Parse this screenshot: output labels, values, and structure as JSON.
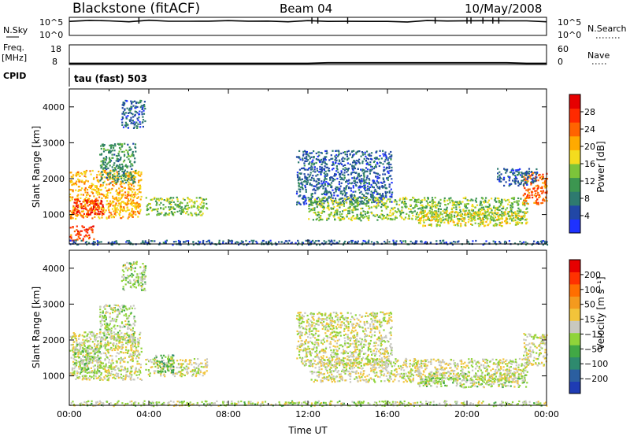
{
  "header": {
    "title": "Blackstone (fitACF)",
    "beam": "Beam 04",
    "date": "10/May/2008"
  },
  "strips": {
    "nsky_label": "N.Sky",
    "nsky_ticks": [
      "10^5",
      "10^0"
    ],
    "nsearch_label": "N.Search",
    "nsearch_ticks": [
      "10^5",
      "10^0"
    ],
    "freq_label": "Freq.",
    "freq_unit": "[MHz]",
    "freq_ticks": [
      "18",
      "8"
    ],
    "nave_label": "Nave",
    "nave_ticks": [
      "60",
      "0"
    ],
    "cpid_label": "CPID",
    "cpid_value": "tau (fast) 503"
  },
  "colors": {
    "power": [
      "#1e32ff",
      "#2147a6",
      "#2e7a6f",
      "#3c9650",
      "#7cc43a",
      "#f4dc1e",
      "#ffaa00",
      "#ff6400",
      "#ff2a00",
      "#e60000"
    ],
    "velocity": [
      "#1e3cb4",
      "#2b5fa0",
      "#2e8a6e",
      "#41a845",
      "#8fd43a",
      "#c8c8c0",
      "#f2c43a",
      "#f49a1e",
      "#ff6e00",
      "#ff3200",
      "#e60000"
    ]
  },
  "chart_data": [
    {
      "type": "heatmap",
      "name": "power",
      "xlabel": "",
      "ylabel": "Slant Range [km]",
      "xlim": [
        0,
        24
      ],
      "ylim": [
        180,
        4500
      ],
      "yticks": [
        "1000",
        "2000",
        "3000",
        "4000"
      ],
      "colorbar_label": "Power [dB]",
      "colorbar_ticks": [
        "4",
        "8",
        "12",
        "16",
        "20",
        "24",
        "28"
      ],
      "colorbar_range": [
        0,
        32
      ],
      "regions": [
        {
          "t": [
            0.0,
            3.6
          ],
          "r": [
            900,
            2250
          ],
          "v": 20
        },
        {
          "t": [
            0.1,
            1.7
          ],
          "r": [
            1000,
            1450
          ],
          "v": 28
        },
        {
          "t": [
            1.5,
            3.3
          ],
          "r": [
            1900,
            3000
          ],
          "v": 10
        },
        {
          "t": [
            2.6,
            3.8
          ],
          "r": [
            3400,
            4200
          ],
          "v": 6
        },
        {
          "t": [
            3.8,
            6.9
          ],
          "r": [
            1000,
            1500
          ],
          "v": 14
        },
        {
          "t": [
            0.0,
            1.2
          ],
          "r": [
            300,
            700
          ],
          "v": 26
        },
        {
          "t": [
            0.0,
            24.0
          ],
          "r": [
            180,
            300
          ],
          "v": 6
        },
        {
          "t": [
            11.4,
            16.2
          ],
          "r": [
            1300,
            2800
          ],
          "v": 6
        },
        {
          "t": [
            12.0,
            23.0
          ],
          "r": [
            850,
            1500
          ],
          "v": 14
        },
        {
          "t": [
            17.5,
            23.0
          ],
          "r": [
            700,
            1100
          ],
          "v": 18
        },
        {
          "t": [
            22.8,
            24.0
          ],
          "r": [
            1300,
            2200
          ],
          "v": 24
        },
        {
          "t": [
            21.5,
            23.5
          ],
          "r": [
            1800,
            2300
          ],
          "v": 6
        }
      ]
    },
    {
      "type": "heatmap",
      "name": "velocity",
      "xlabel": "Time UT",
      "ylabel": "Slant Range [km]",
      "xlim": [
        0,
        24
      ],
      "ylim": [
        180,
        4500
      ],
      "xticks": [
        "00:00",
        "04:00",
        "08:00",
        "12:00",
        "16:00",
        "20:00",
        "00:00"
      ],
      "yticks": [
        "1000",
        "2000",
        "3000",
        "4000"
      ],
      "colorbar_label": "Velocity [m s⁻¹]",
      "colorbar_ticks": [
        "200",
        "100",
        "50",
        "15",
        "−15",
        "−50",
        "−100",
        "−200"
      ],
      "colorbar_range": [
        -250,
        250
      ],
      "regions": [
        {
          "t": [
            0.0,
            3.6
          ],
          "r": [
            900,
            2250
          ],
          "v": 0
        },
        {
          "t": [
            0.2,
            1.6
          ],
          "r": [
            1100,
            1900
          ],
          "v": -40
        },
        {
          "t": [
            1.5,
            3.3
          ],
          "r": [
            1900,
            3000
          ],
          "v": -25
        },
        {
          "t": [
            2.6,
            3.8
          ],
          "r": [
            3400,
            4200
          ],
          "v": -30
        },
        {
          "t": [
            3.8,
            6.9
          ],
          "r": [
            1000,
            1500
          ],
          "v": 0
        },
        {
          "t": [
            4.2,
            5.2
          ],
          "r": [
            1100,
            1600
          ],
          "v": -70
        },
        {
          "t": [
            0.0,
            24.0
          ],
          "r": [
            180,
            320
          ],
          "v": -20
        },
        {
          "t": [
            11.4,
            16.2
          ],
          "r": [
            1300,
            2800
          ],
          "v": 0
        },
        {
          "t": [
            12.0,
            23.0
          ],
          "r": [
            850,
            1500
          ],
          "v": 0
        },
        {
          "t": [
            17.5,
            23.0
          ],
          "r": [
            700,
            1100
          ],
          "v": -20
        },
        {
          "t": [
            22.8,
            24.0
          ],
          "r": [
            1300,
            2200
          ],
          "v": 0
        }
      ]
    }
  ],
  "strip_data": {
    "nsky": [
      0.75,
      0.8,
      0.82,
      0.78,
      0.85,
      0.8,
      0.76,
      0.79,
      0.8,
      0.77,
      0.8,
      0.78,
      0.8,
      0.79,
      0.78,
      0.8,
      0.78,
      0.77,
      0.79,
      0.8,
      0.78,
      0.79,
      0.82,
      0.8,
      0.78
    ],
    "nsky_spikes_hours": [
      3.5,
      12.2,
      12.5,
      14.0,
      18.4,
      20.0,
      20.2,
      20.8,
      21.3,
      21.6
    ],
    "freq": [
      8.6,
      8.6,
      8.6,
      8.6,
      8.6,
      8.6,
      8.6,
      8.6,
      8.6,
      8.6,
      8.6,
      8.6,
      8.6,
      8.9,
      8.9,
      8.9,
      8.9,
      8.9,
      8.9,
      8.9,
      8.9,
      8.9,
      8.9,
      8.6,
      8.6
    ],
    "freq_range": [
      8,
      18
    ]
  }
}
